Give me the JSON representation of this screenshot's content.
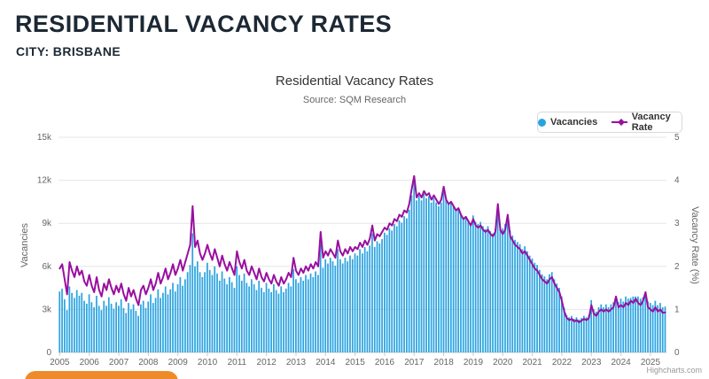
{
  "page": {
    "heading": "RESIDENTIAL VACANCY RATES",
    "subheading": "CITY: BRISBANE"
  },
  "chart": {
    "title": "Residential Vacancy Rates",
    "subtitle": "Source: SQM Research",
    "credits": "Highcharts.com",
    "legend_items": [
      {
        "label": "Vacancies",
        "marker": "circle",
        "color": "#2ba3e0"
      },
      {
        "label": "Vacancy Rate",
        "marker": "line-diamond",
        "color": "#990f9f"
      }
    ],
    "axes": {
      "y_left": {
        "title": "Vacancies",
        "tick_labels": [
          "0",
          "3k",
          "6k",
          "9k",
          "12k",
          "15k"
        ],
        "min": 0,
        "max": 15000
      },
      "y_right": {
        "title": "Vacancy Rate (%)",
        "tick_labels": [
          "0",
          "1",
          "2",
          "3",
          "4",
          "5"
        ],
        "min": 0,
        "max": 5
      },
      "x": {
        "tick_labels": [
          "2005",
          "2006",
          "2007",
          "2008",
          "2009",
          "2010",
          "2011",
          "2012",
          "2013",
          "2014",
          "2015",
          "2016",
          "2017",
          "2018",
          "2019",
          "2020",
          "2021",
          "2022",
          "2023",
          "2024",
          "2025"
        ]
      }
    },
    "colors": {
      "grid": "#e6e6e6",
      "axis_line": "#cccccc",
      "tick_text": "#666666",
      "bar": "#2ba3e0",
      "line": "#990f9f"
    }
  },
  "chart_data": {
    "type": "bar",
    "combo": "column+line",
    "title": "Residential Vacancy Rates",
    "subtitle": "Source: SQM Research",
    "x_unit": "month",
    "x_start": "2005-01",
    "x_end": "2025-07",
    "xlabel": "",
    "grid": true,
    "legend_position": "top-right",
    "ylim_left": [
      0,
      15000
    ],
    "ylim_right": [
      0,
      5
    ],
    "series": [
      {
        "name": "Vacancies",
        "type": "column",
        "y_axis": "left",
        "color": "#2ba3e0",
        "values": [
          4250,
          4450,
          3700,
          2950,
          4600,
          4150,
          3800,
          4350,
          3950,
          4150,
          3600,
          3400,
          4050,
          3500,
          3150,
          3950,
          3250,
          2950,
          3600,
          3250,
          3850,
          3400,
          3050,
          3500,
          3250,
          3700,
          3100,
          2750,
          3450,
          3000,
          3350,
          2900,
          2550,
          3350,
          3600,
          3100,
          3550,
          4050,
          3450,
          3800,
          4400,
          3800,
          4150,
          4600,
          4050,
          4400,
          4850,
          4250,
          4750,
          5250,
          4650,
          5100,
          5600,
          6100,
          8300,
          6000,
          6350,
          5600,
          5250,
          5600,
          6250,
          5750,
          5400,
          6000,
          5500,
          5000,
          5650,
          5150,
          4750,
          5250,
          4900,
          4500,
          6000,
          5400,
          5000,
          5500,
          4850,
          4600,
          5100,
          4750,
          4350,
          5000,
          4500,
          4200,
          4850,
          4450,
          4200,
          4750,
          4350,
          4100,
          4600,
          4200,
          4450,
          4850,
          4600,
          5800,
          5100,
          4850,
          5250,
          5000,
          5400,
          5100,
          5500,
          5250,
          5650,
          5400,
          7550,
          5900,
          6500,
          6200,
          6600,
          6350,
          6050,
          7200,
          6500,
          6200,
          6600,
          6350,
          6750,
          6500,
          6900,
          6750,
          7200,
          6900,
          7350,
          7050,
          7450,
          8300,
          7350,
          7750,
          7600,
          7900,
          8350,
          8200,
          8650,
          8500,
          8950,
          8800,
          9200,
          9050,
          9500,
          9350,
          9950,
          10950,
          12100,
          10600,
          10900,
          10600,
          11050,
          10750,
          10900,
          10450,
          10750,
          10450,
          10200,
          10450,
          11600,
          10700,
          10400,
          10550,
          10250,
          9950,
          10100,
          9650,
          9350,
          9500,
          9200,
          8900,
          9550,
          9100,
          8950,
          9100,
          8800,
          8600,
          8800,
          8450,
          8300,
          8600,
          9900,
          8800,
          8650,
          8950,
          9500,
          8500,
          8150,
          7850,
          7700,
          7550,
          7200,
          7400,
          7050,
          6750,
          6550,
          6250,
          6100,
          5750,
          5450,
          5300,
          5100,
          5450,
          5600,
          5100,
          4800,
          4500,
          3900,
          3100,
          2600,
          2450,
          2550,
          2350,
          2450,
          2300,
          2400,
          2550,
          2450,
          2600,
          3650,
          3000,
          2850,
          3150,
          3350,
          3150,
          3350,
          3150,
          3350,
          3500,
          3900,
          3500,
          3750,
          3550,
          3900,
          3750,
          3800,
          3900,
          3900,
          3900,
          3750,
          3850,
          4000,
          3550,
          3450,
          3300,
          3600,
          3300,
          3450,
          3150,
          3200
        ]
      },
      {
        "name": "Vacancy Rate",
        "type": "line",
        "y_axis": "right",
        "color": "#990f9f",
        "values": [
          1.95,
          2.05,
          1.7,
          1.35,
          2.1,
          1.9,
          1.75,
          2.0,
          1.8,
          1.9,
          1.65,
          1.55,
          1.8,
          1.55,
          1.4,
          1.75,
          1.45,
          1.3,
          1.6,
          1.45,
          1.7,
          1.5,
          1.35,
          1.55,
          1.4,
          1.6,
          1.35,
          1.2,
          1.5,
          1.3,
          1.45,
          1.25,
          1.1,
          1.45,
          1.55,
          1.35,
          1.5,
          1.7,
          1.45,
          1.6,
          1.85,
          1.6,
          1.75,
          1.95,
          1.7,
          1.85,
          2.05,
          1.8,
          1.95,
          2.15,
          1.9,
          2.1,
          2.3,
          2.5,
          3.4,
          2.45,
          2.6,
          2.3,
          2.15,
          2.3,
          2.5,
          2.3,
          2.15,
          2.4,
          2.2,
          2.0,
          2.25,
          2.05,
          1.9,
          2.1,
          1.95,
          1.8,
          2.35,
          2.1,
          1.95,
          2.15,
          1.9,
          1.8,
          2.0,
          1.85,
          1.7,
          1.95,
          1.75,
          1.65,
          1.85,
          1.7,
          1.6,
          1.8,
          1.65,
          1.55,
          1.75,
          1.6,
          1.7,
          1.85,
          1.75,
          2.2,
          1.9,
          1.8,
          1.95,
          1.85,
          2.0,
          1.9,
          2.05,
          1.95,
          2.1,
          2.0,
          2.8,
          2.2,
          2.35,
          2.25,
          2.4,
          2.3,
          2.2,
          2.6,
          2.35,
          2.25,
          2.4,
          2.3,
          2.45,
          2.35,
          2.45,
          2.4,
          2.55,
          2.45,
          2.6,
          2.5,
          2.65,
          2.95,
          2.6,
          2.75,
          2.7,
          2.8,
          2.9,
          2.85,
          3.0,
          2.95,
          3.1,
          3.05,
          3.2,
          3.15,
          3.3,
          3.25,
          3.45,
          3.8,
          4.1,
          3.6,
          3.7,
          3.6,
          3.75,
          3.65,
          3.7,
          3.55,
          3.65,
          3.55,
          3.45,
          3.55,
          3.85,
          3.55,
          3.45,
          3.5,
          3.4,
          3.3,
          3.35,
          3.2,
          3.1,
          3.15,
          3.05,
          2.95,
          3.1,
          2.95,
          2.9,
          2.95,
          2.85,
          2.8,
          2.85,
          2.75,
          2.7,
          2.8,
          3.45,
          2.85,
          2.75,
          2.85,
          3.2,
          2.7,
          2.6,
          2.5,
          2.45,
          2.4,
          2.3,
          2.35,
          2.25,
          2.15,
          2.05,
          1.95,
          1.9,
          1.8,
          1.7,
          1.65,
          1.6,
          1.7,
          1.75,
          1.6,
          1.5,
          1.4,
          1.2,
          0.95,
          0.8,
          0.75,
          0.78,
          0.72,
          0.75,
          0.7,
          0.74,
          0.78,
          0.75,
          0.8,
          1.1,
          0.9,
          0.85,
          0.95,
          1.0,
          0.95,
          1.0,
          0.95,
          1.0,
          1.05,
          1.3,
          1.05,
          1.1,
          1.05,
          1.15,
          1.1,
          1.2,
          1.15,
          1.25,
          1.15,
          1.1,
          1.2,
          1.4,
          1.05,
          1.0,
          0.95,
          1.05,
          0.95,
          1.0,
          0.92,
          0.93
        ]
      }
    ]
  }
}
